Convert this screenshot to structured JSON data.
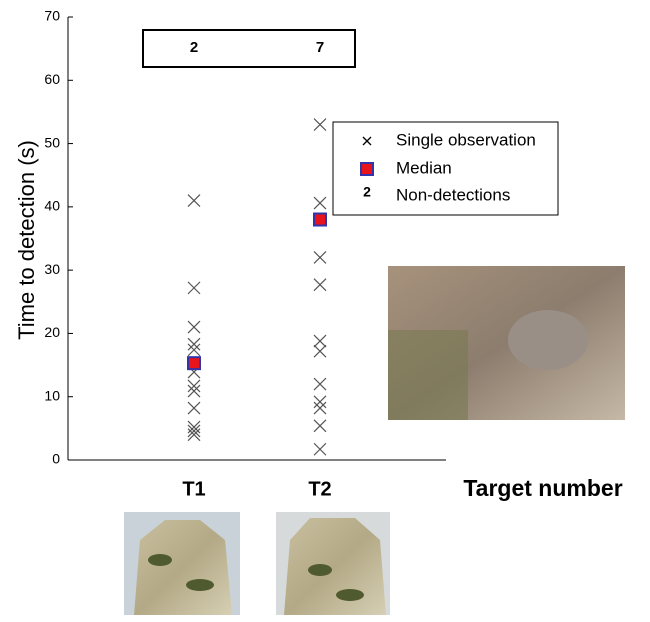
{
  "chart_data": {
    "type": "scatter",
    "y_label": "Time to detection (s)",
    "x_label": "Target number",
    "categories": [
      "T1",
      "T2"
    ],
    "ylim": [
      0,
      70
    ],
    "yticks": [
      0,
      10,
      20,
      30,
      40,
      50,
      60,
      70
    ],
    "series": [
      {
        "name": "Single observation",
        "color": "#555555",
        "x": [
          "T1",
          "T1",
          "T1",
          "T1",
          "T1",
          "T1",
          "T1",
          "T1",
          "T1",
          "T1",
          "T1",
          "T1",
          "T2",
          "T2",
          "T2",
          "T2",
          "T2",
          "T2",
          "T2",
          "T2",
          "T2",
          "T2",
          "T2"
        ],
        "values": [
          41,
          27.2,
          21,
          18.3,
          17.4,
          13.9,
          11.7,
          10.9,
          8.2,
          5.2,
          4.6,
          4.0,
          53,
          40.6,
          32,
          27.7,
          18.8,
          17.2,
          12,
          9.2,
          8.2,
          5.4,
          1.7
        ]
      },
      {
        "name": "Median",
        "color": "#e8141c",
        "edge": "#3333aa",
        "x": [
          "T1",
          "T2"
        ],
        "values": [
          15.3,
          38
        ]
      }
    ],
    "non_detections": {
      "name": "Non-detections",
      "values": [
        2,
        7
      ]
    }
  }
}
